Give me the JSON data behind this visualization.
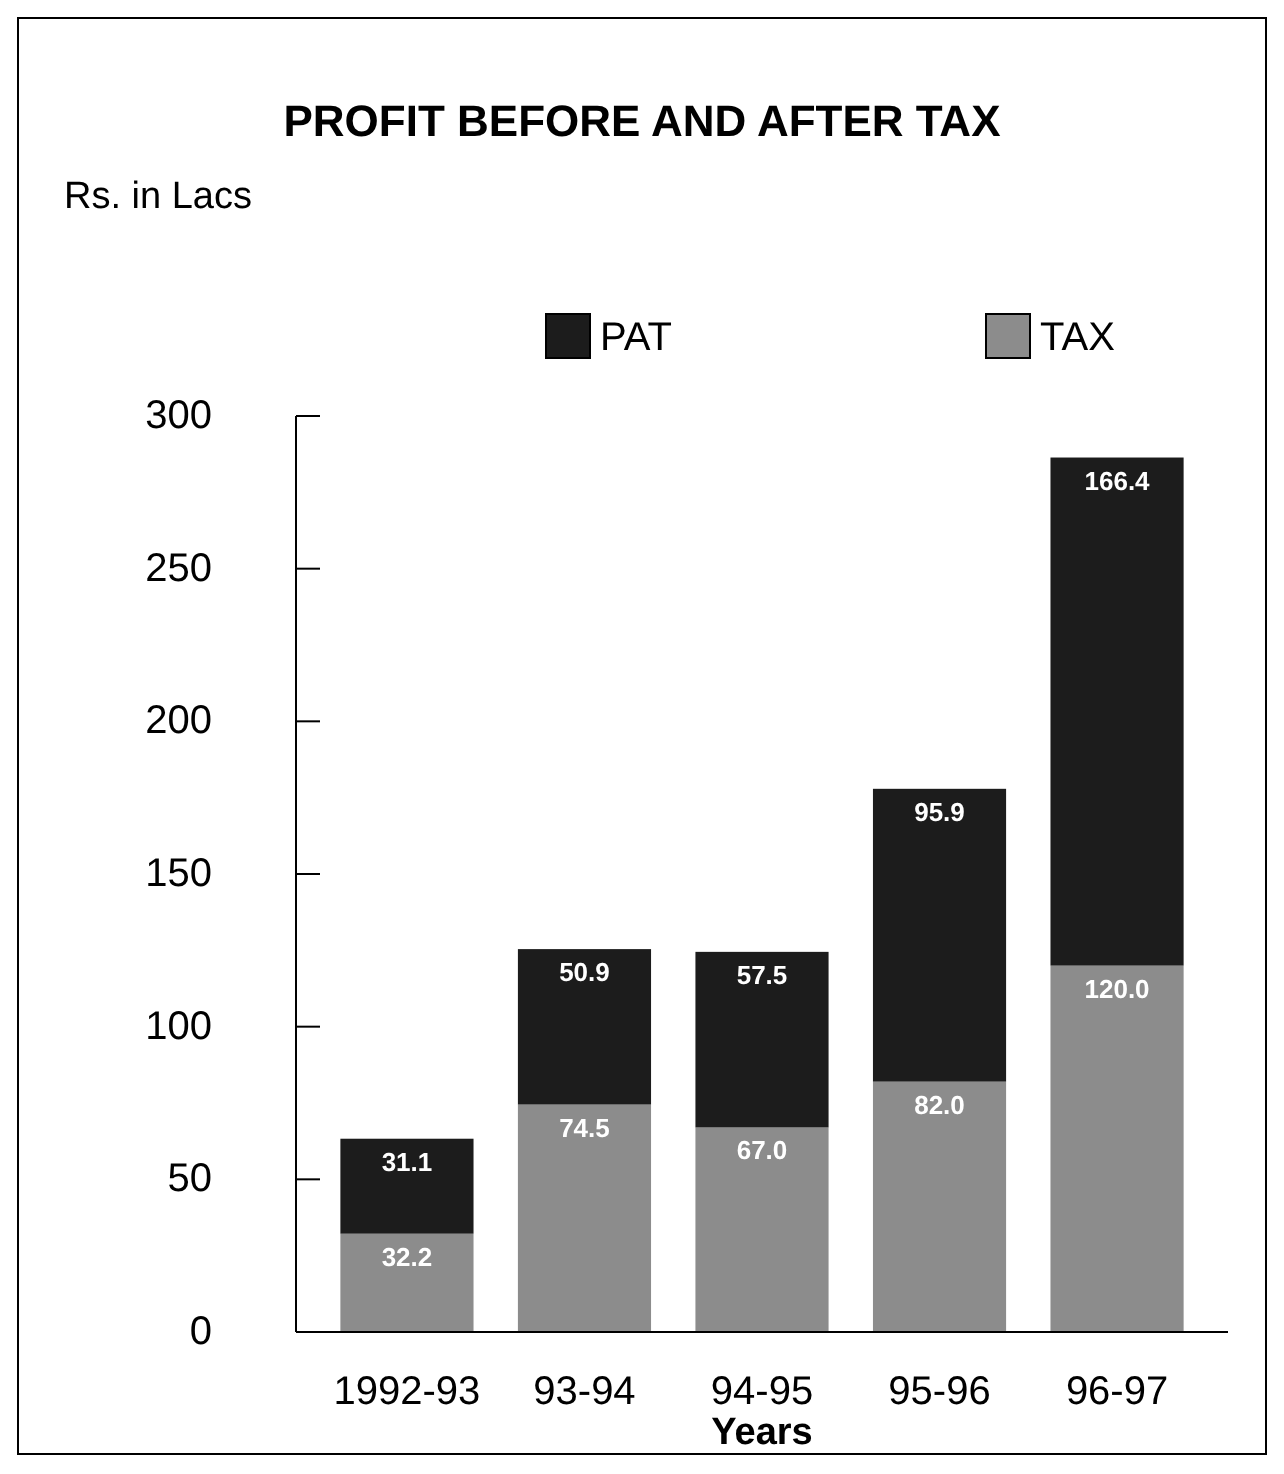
{
  "chart_data": {
    "type": "bar",
    "title": "PROFIT BEFORE AND AFTER TAX",
    "ylabel": "Rs. in Lacs",
    "xlabel": "Years",
    "categories": [
      "1992-93",
      "93-94",
      "94-95",
      "95-96",
      "96-97"
    ],
    "stacked": true,
    "series": [
      {
        "name": "TAX",
        "color": "#8c8c8c",
        "values": [
          32.2,
          74.5,
          67.0,
          82.0,
          120.0
        ],
        "value_labels": [
          "32.2",
          "74.5",
          "67.0",
          "82.0",
          "120.0"
        ]
      },
      {
        "name": "PAT",
        "color": "#1c1c1c",
        "values": [
          31.1,
          50.9,
          57.5,
          95.9,
          166.4
        ],
        "value_labels": [
          "31.1",
          "50.9",
          "57.5",
          "95.9",
          "166.4"
        ]
      }
    ],
    "ylim": [
      0,
      300
    ],
    "yticks": [
      0,
      50,
      100,
      150,
      200,
      250,
      300
    ],
    "grid": false,
    "legend": "top right"
  }
}
